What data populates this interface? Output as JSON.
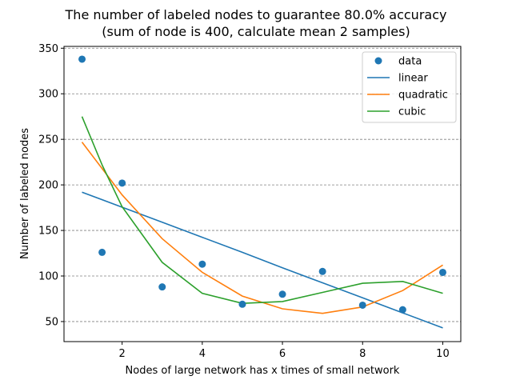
{
  "chart_data": {
    "type": "scatter",
    "title": "The number of labeled nodes to guarantee 80.0% accuracy",
    "subtitle": "(sum of node is 400, calculate mean 2 samples)",
    "xlabel": "Nodes of large network has x times of small network",
    "ylabel": "Number of labeled nodes",
    "xlim": [
      0.55,
      10.45
    ],
    "ylim": [
      28,
      352
    ],
    "xticks": [
      2,
      4,
      6,
      8,
      10
    ],
    "yticks": [
      50,
      100,
      150,
      200,
      250,
      300,
      350
    ],
    "grid": "horizontal dashed",
    "legend_position": "top-right",
    "series": [
      {
        "name": "data",
        "kind": "scatter",
        "color": "#1f77b4",
        "points": [
          [
            1,
            338
          ],
          [
            1.5,
            126
          ],
          [
            2,
            202
          ],
          [
            3,
            88
          ],
          [
            4,
            113
          ],
          [
            5,
            69
          ],
          [
            6,
            80
          ],
          [
            7,
            105
          ],
          [
            8,
            68
          ],
          [
            9,
            63
          ],
          [
            10,
            104
          ]
        ]
      },
      {
        "name": "linear",
        "kind": "line",
        "color": "#1f77b4",
        "points": [
          [
            1,
            192
          ],
          [
            2,
            175.5
          ],
          [
            3,
            159
          ],
          [
            4,
            142.5
          ],
          [
            5,
            126
          ],
          [
            6,
            109
          ],
          [
            7,
            92.5
          ],
          [
            8,
            76
          ],
          [
            9,
            59.5
          ],
          [
            10,
            43
          ]
        ]
      },
      {
        "name": "quadratic",
        "kind": "line",
        "color": "#ff7f0e",
        "points": [
          [
            1,
            247
          ],
          [
            2,
            189
          ],
          [
            3,
            141
          ],
          [
            4,
            104
          ],
          [
            5,
            78
          ],
          [
            6,
            64
          ],
          [
            7,
            59
          ],
          [
            8,
            66
          ],
          [
            9,
            84
          ],
          [
            10,
            112
          ]
        ]
      },
      {
        "name": "cubic",
        "kind": "line",
        "color": "#2ca02c",
        "points": [
          [
            1,
            275
          ],
          [
            1.5,
            222
          ],
          [
            2,
            176
          ],
          [
            3,
            115
          ],
          [
            4,
            81
          ],
          [
            5,
            70
          ],
          [
            6,
            72
          ],
          [
            7,
            82
          ],
          [
            8,
            92
          ],
          [
            9,
            94
          ],
          [
            10,
            81
          ]
        ]
      }
    ]
  }
}
